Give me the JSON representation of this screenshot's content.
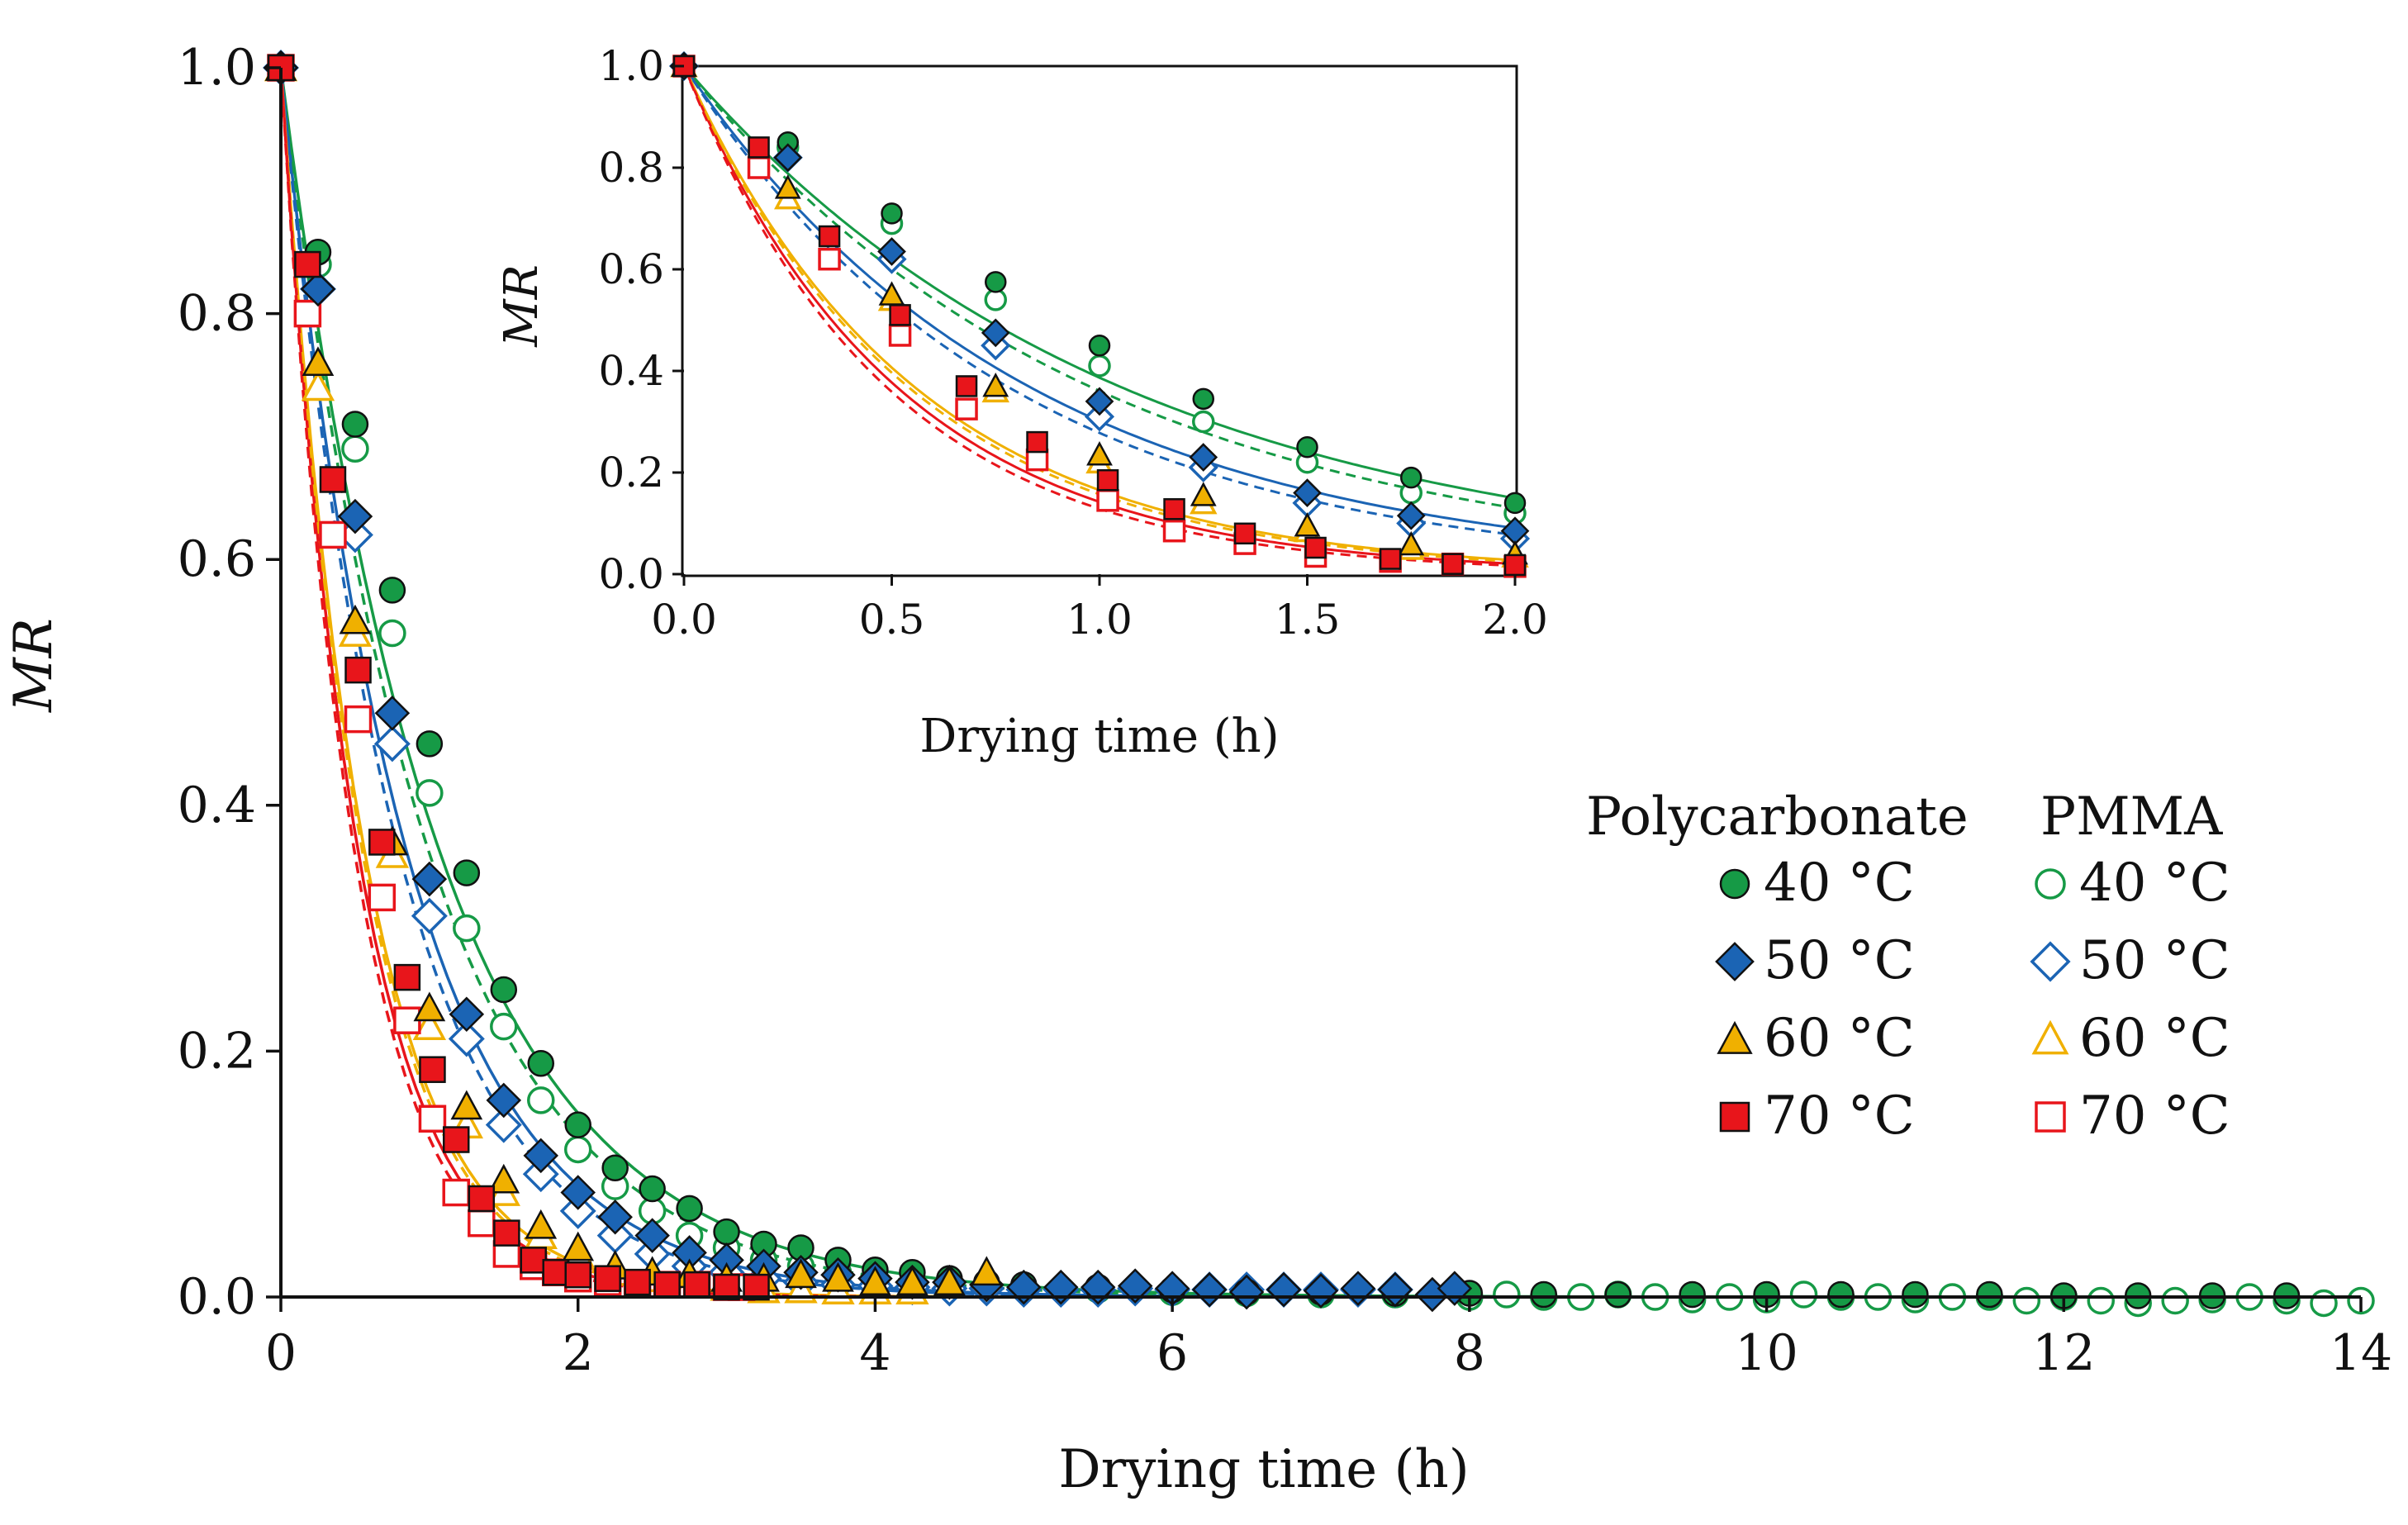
{
  "chart_data": [
    {
      "type": "scatter",
      "title": "",
      "xlabel": "Drying time (h)",
      "ylabel": "MR",
      "xlim": [
        0,
        14
      ],
      "ylim": [
        0,
        1
      ],
      "xticks": [
        "0",
        "2",
        "4",
        "6",
        "8",
        "10",
        "12",
        "14"
      ],
      "yticks": [
        "0.0",
        "0.2",
        "0.4",
        "0.6",
        "0.8",
        "1.0"
      ],
      "fit_lines": true,
      "series": [
        {
          "name": "Polycarbonate 40 °C",
          "group": "Polycarbonate",
          "label": "40 °C",
          "marker": "circle",
          "filled": true,
          "color": "#169a46",
          "k": 0.95,
          "dash": false,
          "x": [
            0,
            0.25,
            0.5,
            0.75,
            1.0,
            1.25,
            1.5,
            1.75,
            2.0,
            2.25,
            2.5,
            2.75,
            3.0,
            3.25,
            3.5,
            3.75,
            4.0,
            4.25,
            4.5,
            4.75,
            5.0,
            5.5,
            6.0,
            6.5,
            7.0,
            7.5,
            8.0,
            8.5,
            9.0,
            9.5,
            10.0,
            10.5,
            11.0,
            11.5,
            12.0,
            12.5,
            13.0,
            13.5
          ],
          "y": [
            1.0,
            0.85,
            0.71,
            0.575,
            0.45,
            0.345,
            0.25,
            0.19,
            0.14,
            0.105,
            0.088,
            0.072,
            0.053,
            0.043,
            0.04,
            0.03,
            0.022,
            0.02,
            0.015,
            0.012,
            0.01,
            0.008,
            0.006,
            0.004,
            0.004,
            0.003,
            0.003,
            0.002,
            0.002,
            0.002,
            0.002,
            0.002,
            0.002,
            0.002,
            0.001,
            0.001,
            0.001,
            0.001
          ]
        },
        {
          "name": "Polycarbonate 50 °C",
          "group": "Polycarbonate",
          "label": "50 °C",
          "marker": "diamond",
          "filled": true,
          "color": "#1b64b4",
          "k": 1.2,
          "dash": false,
          "x": [
            0,
            0.25,
            0.5,
            0.75,
            1.0,
            1.25,
            1.5,
            1.75,
            2.0,
            2.25,
            2.5,
            2.75,
            3.0,
            3.25,
            3.5,
            3.75,
            4.0,
            4.25,
            4.5,
            4.75,
            5.0,
            5.25,
            5.5,
            5.75,
            6.0,
            6.25,
            6.5,
            6.75,
            7.0,
            7.25,
            7.5,
            7.75,
            7.9
          ],
          "y": [
            1.0,
            0.82,
            0.635,
            0.475,
            0.34,
            0.23,
            0.16,
            0.115,
            0.085,
            0.065,
            0.05,
            0.036,
            0.03,
            0.025,
            0.02,
            0.018,
            0.015,
            0.012,
            0.012,
            0.01,
            0.008,
            0.008,
            0.008,
            0.009,
            0.007,
            0.006,
            0.004,
            0.006,
            0.005,
            0.007,
            0.006,
            0.002,
            0.007
          ]
        },
        {
          "name": "Polycarbonate 60 °C",
          "group": "Polycarbonate",
          "label": "60 °C",
          "marker": "triangle",
          "filled": true,
          "color": "#f0b000",
          "k": 1.8,
          "dash": false,
          "x": [
            0,
            0.25,
            0.5,
            0.75,
            1.0,
            1.25,
            1.5,
            1.75,
            2.0,
            2.25,
            2.5,
            2.75,
            3.0,
            3.25,
            3.5,
            3.75,
            4.0,
            4.25,
            4.5,
            4.75
          ],
          "y": [
            1.0,
            0.76,
            0.55,
            0.37,
            0.235,
            0.155,
            0.095,
            0.058,
            0.04,
            0.025,
            0.02,
            0.018,
            0.015,
            0.015,
            0.018,
            0.015,
            0.012,
            0.012,
            0.012,
            0.02
          ]
        },
        {
          "name": "Polycarbonate 70 °C",
          "group": "Polycarbonate",
          "label": "70 °C",
          "marker": "square",
          "filled": true,
          "color": "#e8151b",
          "k": 1.95,
          "dash": false,
          "x": [
            0,
            0.18,
            0.35,
            0.52,
            0.68,
            0.85,
            1.02,
            1.18,
            1.35,
            1.52,
            1.7,
            1.85,
            2.0,
            2.2,
            2.4,
            2.6,
            2.8,
            3.0,
            3.2
          ],
          "y": [
            1.0,
            0.84,
            0.665,
            0.51,
            0.37,
            0.26,
            0.185,
            0.128,
            0.08,
            0.052,
            0.03,
            0.02,
            0.018,
            0.015,
            0.012,
            0.01,
            0.01,
            0.008,
            0.008
          ]
        },
        {
          "name": "PMMA 40 °C",
          "group": "PMMA",
          "label": "40 °C",
          "marker": "circle",
          "filled": false,
          "color": "#169a46",
          "k": 1.02,
          "dash": true,
          "x": [
            0,
            0.25,
            0.5,
            0.75,
            1.0,
            1.25,
            1.5,
            1.75,
            2.0,
            2.25,
            2.5,
            2.75,
            3.0,
            3.25,
            3.5,
            3.75,
            4.0,
            4.5,
            5.0,
            5.5,
            6.0,
            6.5,
            7.0,
            7.5,
            8.0,
            8.25,
            8.5,
            8.75,
            9.0,
            9.25,
            9.5,
            9.75,
            10.0,
            10.25,
            10.5,
            10.75,
            11.0,
            11.25,
            11.5,
            11.75,
            12.0,
            12.25,
            12.5,
            12.75,
            13.0,
            13.25,
            13.5,
            13.75,
            14.0
          ],
          "y": [
            1.0,
            0.84,
            0.69,
            0.54,
            0.41,
            0.3,
            0.22,
            0.16,
            0.12,
            0.09,
            0.07,
            0.05,
            0.04,
            0.03,
            0.025,
            0.02,
            0.015,
            0.012,
            0.008,
            0.006,
            0.004,
            0.003,
            0.002,
            0.002,
            0.0,
            0.002,
            0.0,
            0.0,
            0.002,
            0.0,
            -0.002,
            0.0,
            -0.002,
            0.002,
            0.0,
            0.0,
            -0.002,
            0.0,
            0.0,
            -0.003,
            0.0,
            -0.003,
            -0.005,
            -0.003,
            -0.002,
            0.0,
            -0.003,
            -0.005,
            -0.003
          ]
        },
        {
          "name": "PMMA 50 °C",
          "group": "PMMA",
          "label": "50 °C",
          "marker": "diamond",
          "filled": false,
          "color": "#1b64b4",
          "k": 1.28,
          "dash": true,
          "x": [
            0,
            0.25,
            0.5,
            0.75,
            1.0,
            1.25,
            1.5,
            1.75,
            2.0,
            2.25,
            2.5,
            2.75,
            3.0,
            3.25,
            3.5,
            3.75,
            4.0,
            4.25,
            4.5,
            4.75,
            5.0,
            5.25,
            5.5,
            5.75,
            6.0,
            6.25,
            6.5,
            6.75,
            7.0,
            7.25,
            7.5
          ],
          "y": [
            1.0,
            0.82,
            0.62,
            0.45,
            0.31,
            0.21,
            0.14,
            0.1,
            0.07,
            0.05,
            0.035,
            0.025,
            0.02,
            0.015,
            0.012,
            0.01,
            0.009,
            0.008,
            0.007,
            0.007,
            0.006,
            0.006,
            0.006,
            0.007,
            0.006,
            0.006,
            0.006,
            0.006,
            0.006,
            0.006,
            0.006
          ]
        },
        {
          "name": "PMMA 60 °C",
          "group": "PMMA",
          "label": "60 °C",
          "marker": "triangle",
          "filled": false,
          "color": "#f0b000",
          "k": 1.85,
          "dash": true,
          "x": [
            0,
            0.25,
            0.5,
            0.75,
            1.0,
            1.25,
            1.5,
            1.75,
            2.0,
            2.25,
            2.5,
            2.75,
            3.0,
            3.25,
            3.5,
            3.75,
            4.0,
            4.25
          ],
          "y": [
            1.0,
            0.74,
            0.54,
            0.36,
            0.22,
            0.14,
            0.085,
            0.05,
            0.035,
            0.02,
            0.015,
            0.01,
            0.008,
            0.006,
            0.006,
            0.005,
            0.005,
            0.005
          ]
        },
        {
          "name": "PMMA 70 °C",
          "group": "PMMA",
          "label": "70 °C",
          "marker": "square",
          "filled": false,
          "color": "#e8151b",
          "k": 2.05,
          "dash": true,
          "x": [
            0,
            0.18,
            0.35,
            0.52,
            0.68,
            0.85,
            1.02,
            1.18,
            1.35,
            1.52,
            1.7,
            1.85,
            2.0,
            2.2,
            2.4,
            2.6,
            2.8,
            3.0,
            3.1
          ],
          "y": [
            1.0,
            0.8,
            0.62,
            0.47,
            0.325,
            0.225,
            0.145,
            0.085,
            0.06,
            0.035,
            0.025,
            0.02,
            0.015,
            0.012,
            0.01,
            0.01,
            0.01,
            0.008,
            0.008
          ]
        }
      ]
    },
    {
      "type": "scatter",
      "role": "inset",
      "title": "",
      "xlabel": "Drying time (h)",
      "ylabel": "MR",
      "xlim": [
        0,
        2.0
      ],
      "ylim": [
        0,
        1.0
      ],
      "xticks": [
        "0.0",
        "0.5",
        "1.0",
        "1.5",
        "2.0"
      ],
      "yticks": [
        "0.0",
        "0.2",
        "0.4",
        "0.6",
        "0.8",
        "1.0"
      ],
      "note": "zoomed view of the first 2 h of the same series"
    }
  ],
  "legend": {
    "headers": [
      "Polycarbonate",
      "PMMA"
    ],
    "labels": [
      "40 °C",
      "50 °C",
      "60 °C",
      "70 °C"
    ]
  }
}
